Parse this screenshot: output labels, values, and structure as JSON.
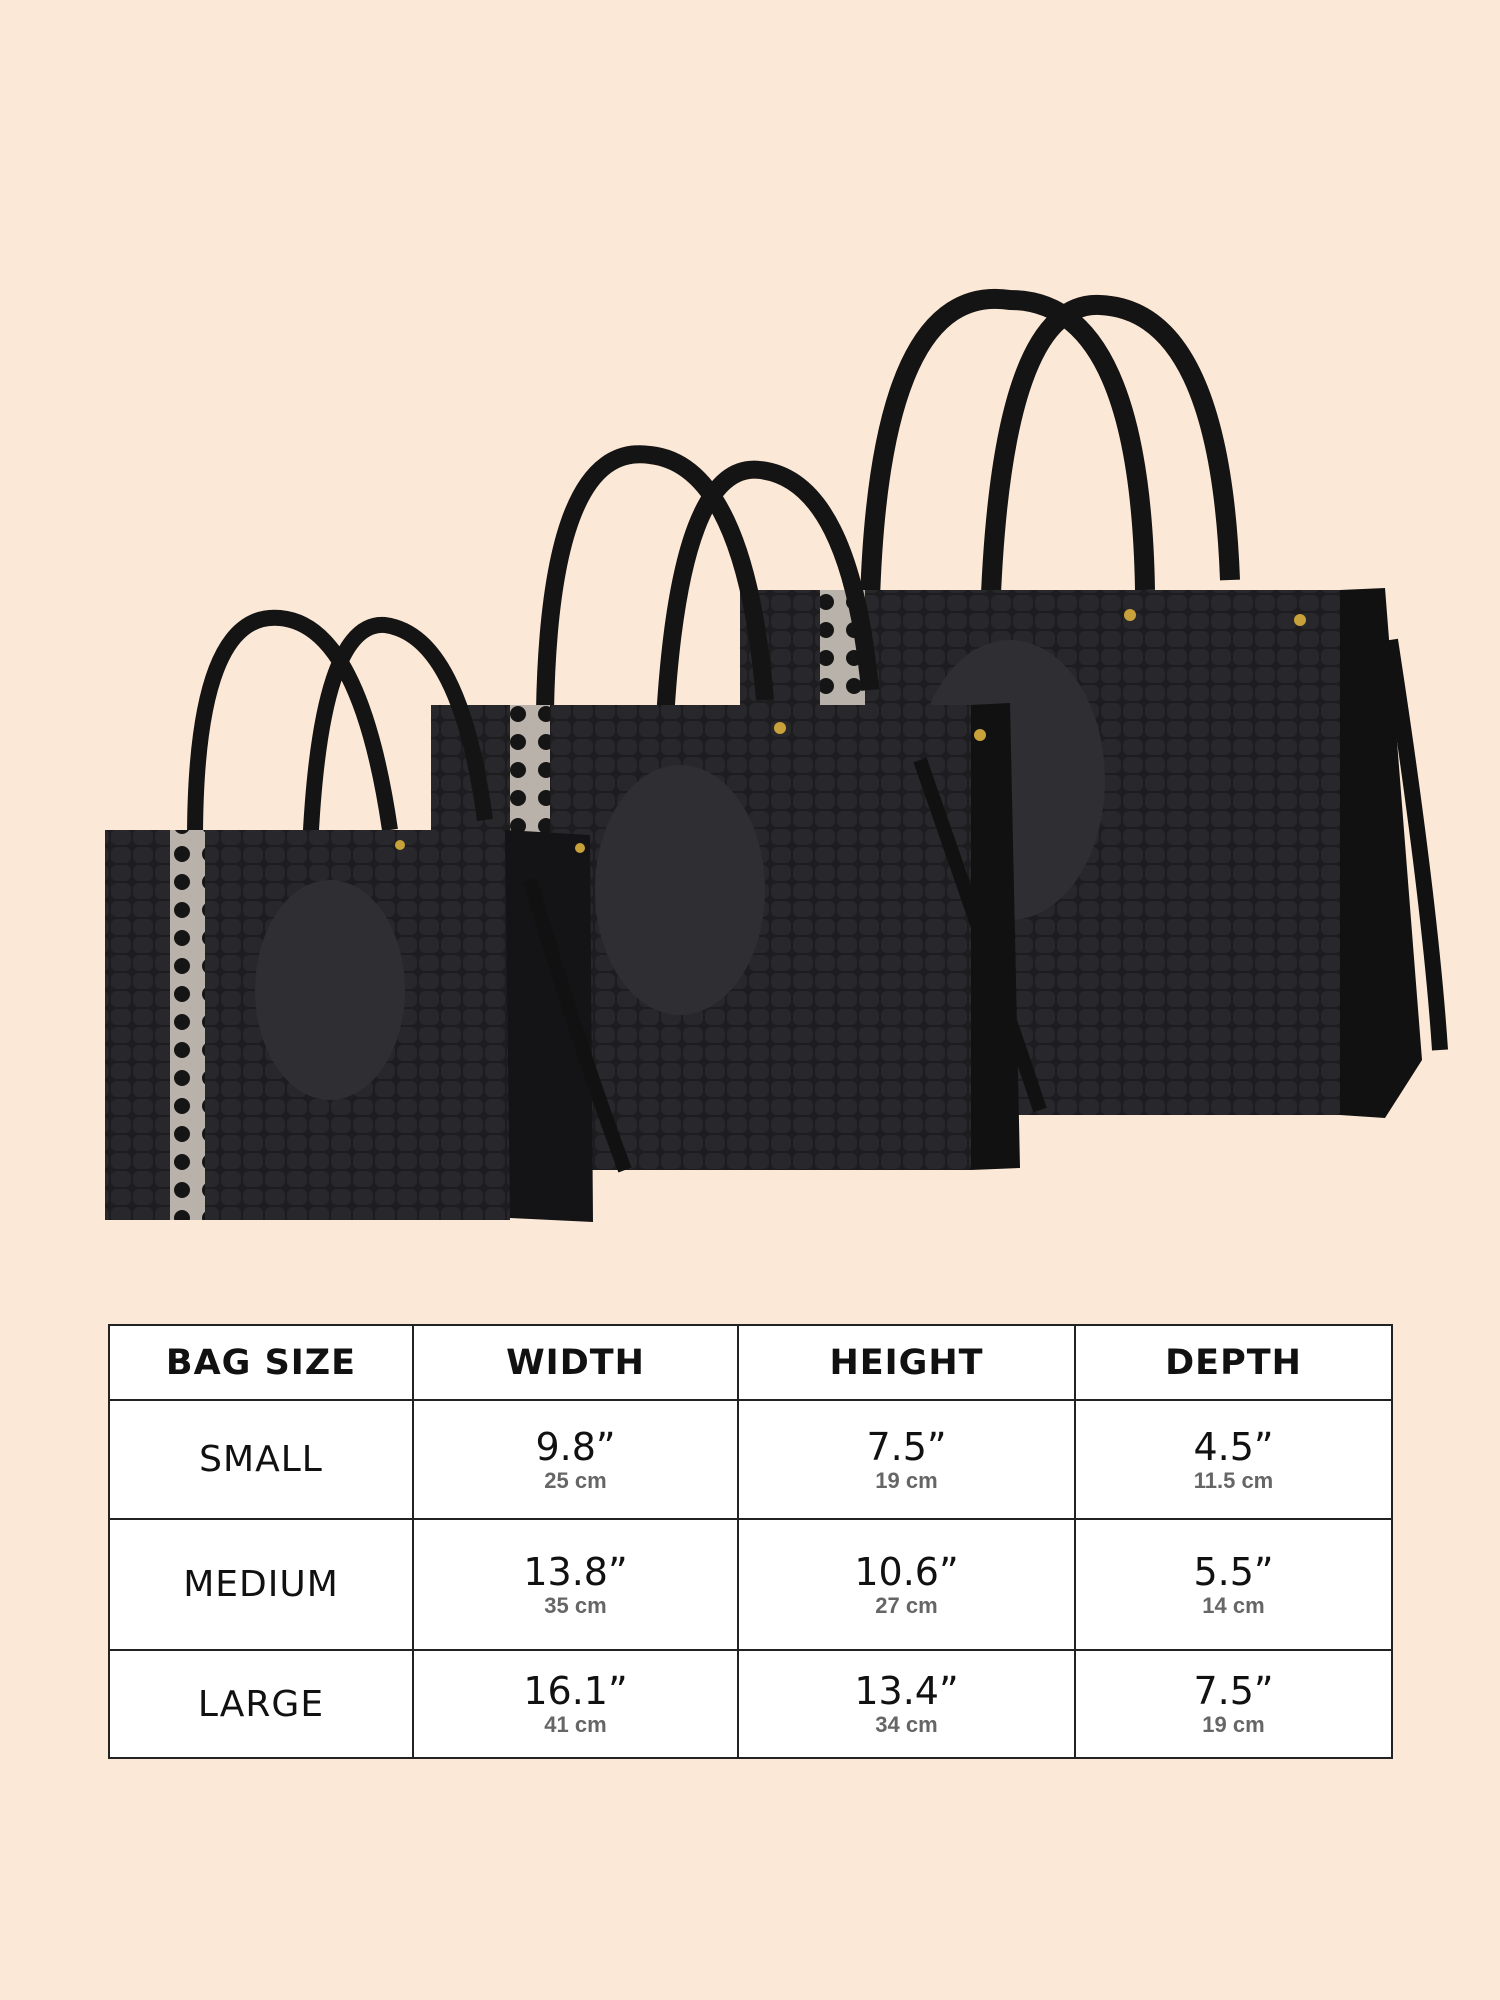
{
  "product_image": {
    "description_label": "",
    "bags": [
      "large",
      "medium",
      "small"
    ],
    "colors": {
      "background": "#fce8d6",
      "leather": "#1c1c1e",
      "hardware": "#c9a13a",
      "panel": "#bdb5ac"
    }
  },
  "size_table": {
    "headers": [
      "BAG SIZE",
      "WIDTH",
      "HEIGHT",
      "DEPTH"
    ],
    "rows": [
      {
        "size": "SMALL",
        "width_in": "9.8”",
        "width_cm": "25 cm",
        "height_in": "7.5”",
        "height_cm": "19 cm",
        "depth_in": "4.5”",
        "depth_cm": "11.5 cm"
      },
      {
        "size": "MEDIUM",
        "width_in": "13.8”",
        "width_cm": "35 cm",
        "height_in": "10.6”",
        "height_cm": "27 cm",
        "depth_in": "5.5”",
        "depth_cm": "14 cm"
      },
      {
        "size": "LARGE",
        "width_in": "16.1”",
        "width_cm": "41 cm",
        "height_in": "13.4”",
        "height_cm": "34 cm",
        "depth_in": "7.5”",
        "depth_cm": "19 cm"
      }
    ]
  }
}
